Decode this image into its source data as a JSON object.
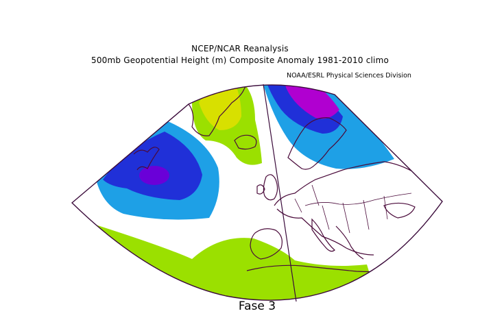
{
  "header": {
    "title": "NCEP/NCAR Reanalysis",
    "subtitle": "500mb Geopotential Height (m) Composite Anomaly 1981-2010 climo",
    "credit": "NOAA/ESRL Physical Sciences Division"
  },
  "caption": "Fase 3",
  "colors": {
    "strong_negative": "#6a00d8",
    "negative": "#2030d8",
    "weak_negative": "#1ea0e6",
    "weak_positive": "#9be000",
    "positive": "#d8e000",
    "strong_positive": "#b000d0",
    "coastline": "#4a0a3a",
    "frame": "#3a0a3a"
  }
}
